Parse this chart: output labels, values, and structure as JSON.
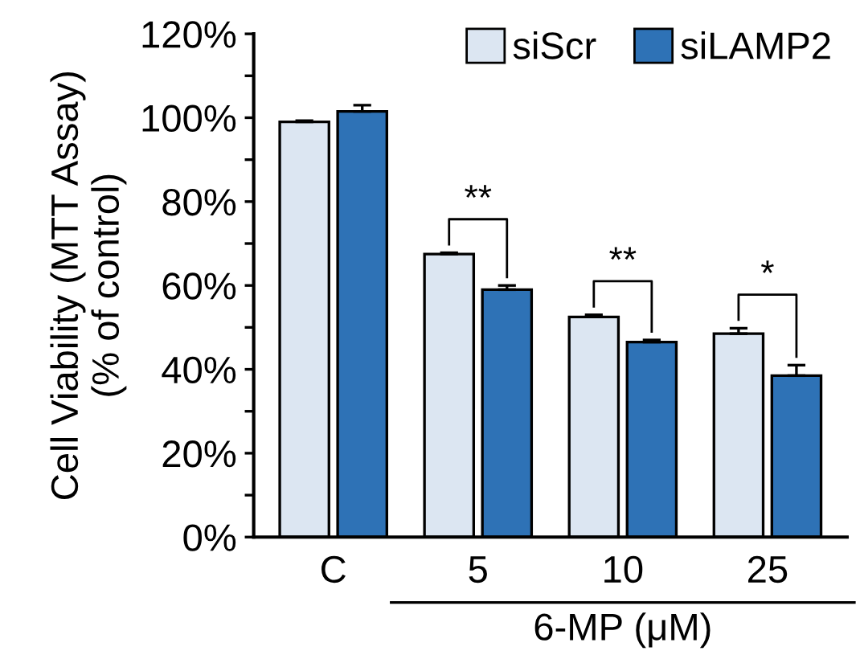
{
  "chart_data": {
    "type": "bar",
    "ylabel": "Cell Viability (MTT Assay)\n(% of control)",
    "xlabel": "6-MP (μM)",
    "categories": [
      "C",
      "5",
      "10",
      "25"
    ],
    "series": [
      {
        "name": "siScr",
        "color": "#dce6f2",
        "values": [
          99,
          67.5,
          52.5,
          48.5
        ],
        "errors": [
          0.3,
          0.3,
          0.5,
          1.3
        ]
      },
      {
        "name": "siLAMP2",
        "color": "#2e72b6",
        "values": [
          101.5,
          59,
          46.5,
          38.5
        ],
        "errors": [
          1.5,
          1,
          0.5,
          2.5
        ]
      }
    ],
    "ylim": [
      0,
      120
    ],
    "yticks": [
      {
        "value": 0,
        "label": "0%"
      },
      {
        "value": 10,
        "label": null
      },
      {
        "value": 20,
        "label": "20%"
      },
      {
        "value": 30,
        "label": null
      },
      {
        "value": 40,
        "label": "40%"
      },
      {
        "value": 50,
        "label": null
      },
      {
        "value": 60,
        "label": "60%"
      },
      {
        "value": 70,
        "label": null
      },
      {
        "value": 80,
        "label": "80%"
      },
      {
        "value": 90,
        "label": null
      },
      {
        "value": 100,
        "label": "100%"
      },
      {
        "value": 110,
        "label": null
      },
      {
        "value": 120,
        "label": "120%"
      }
    ],
    "annotations": [
      "**",
      "**",
      "*"
    ],
    "grid": false,
    "legend": "top right"
  }
}
